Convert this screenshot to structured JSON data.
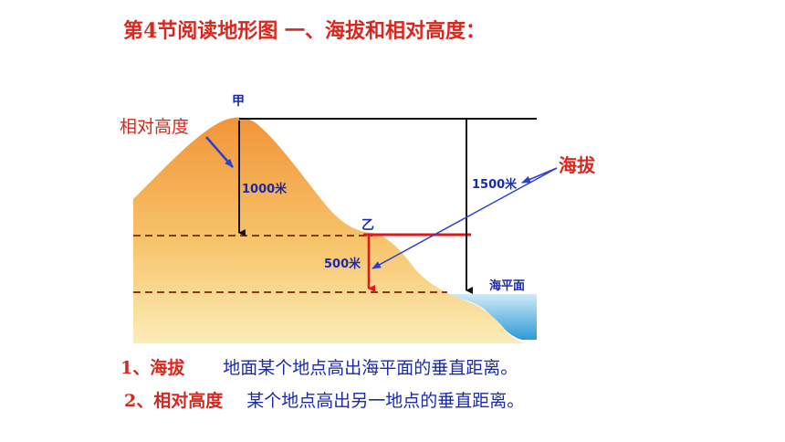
{
  "title": "第4节阅读地形图  一、海拔和相对高度：",
  "diagram": {
    "point_jia": "甲",
    "point_yi": "乙",
    "relative_height_label": "相对高度",
    "altitude_label": "海拔",
    "height_1000": "1000米",
    "height_1500": "1500米",
    "height_500": "500米",
    "sea_level_label": "海平面",
    "colors": {
      "land_top": "#f4a24a",
      "land_bottom": "#fbe3a6",
      "sea": "#2f9fd8",
      "arrow_red": "#e01818",
      "arrow_blue": "#2b3fd0"
    }
  },
  "definitions": [
    {
      "num": "1、",
      "term": "海拔",
      "text": "地面某个地点高出海平面的垂直距离。"
    },
    {
      "num": "2、",
      "term": "相对高度",
      "text": "某个地点高出另一地点的垂直距离。"
    }
  ]
}
